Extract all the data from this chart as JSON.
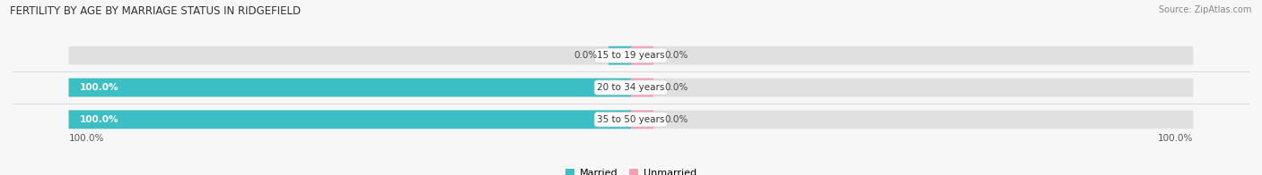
{
  "title": "FERTILITY BY AGE BY MARRIAGE STATUS IN RIDGEFIELD",
  "source": "Source: ZipAtlas.com",
  "categories": [
    "15 to 19 years",
    "20 to 34 years",
    "35 to 50 years"
  ],
  "married": [
    0.0,
    100.0,
    100.0
  ],
  "unmarried": [
    0.0,
    0.0,
    0.0
  ],
  "married_color": "#3bbfc4",
  "unmarried_color": "#f4a0b5",
  "bar_bg_color": "#e0e0e0",
  "bg_color": "#f7f7f7",
  "bar_height": 0.55,
  "title_fontsize": 8.5,
  "label_fontsize": 7.5,
  "cat_fontsize": 7.5,
  "legend_fontsize": 8,
  "source_fontsize": 7.0,
  "axis_label": "100.0%"
}
